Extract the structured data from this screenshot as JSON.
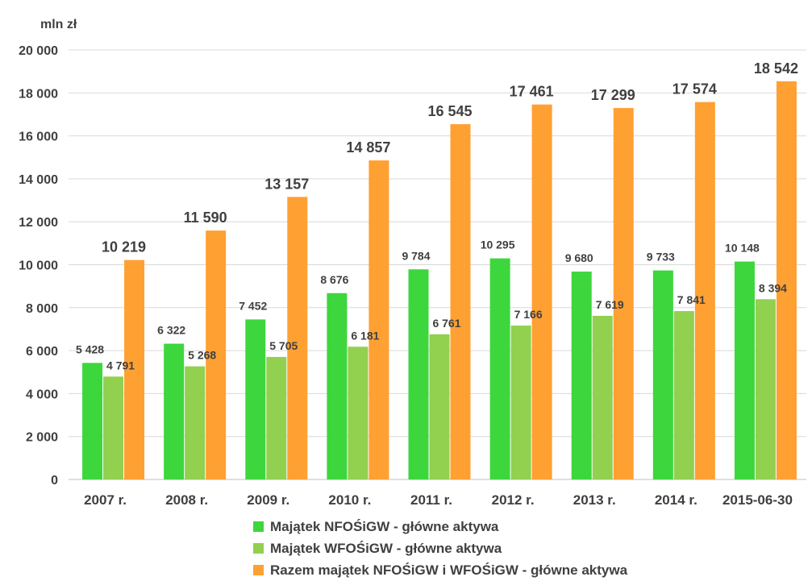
{
  "chart_data": {
    "type": "bar",
    "unit_label": "mln zł",
    "categories": [
      "2007 r.",
      "2008 r.",
      "2009 r.",
      "2010 r.",
      "2011 r.",
      "2012 r.",
      "2013 r.",
      "2014 r.",
      "2015-06-30"
    ],
    "ylim": [
      0,
      20000
    ],
    "yticks": [
      0,
      2000,
      4000,
      6000,
      8000,
      10000,
      12000,
      14000,
      16000,
      18000,
      20000
    ],
    "ytick_labels": [
      "0",
      "2 000",
      "4 000",
      "6 000",
      "8 000",
      "10 000",
      "12 000",
      "14 000",
      "16 000",
      "18 000",
      "20 000"
    ],
    "grid": true,
    "legend_position": "bottom",
    "series": [
      {
        "name": "Majątek NFOŚiGW - główne aktywa",
        "color": "#3dd63d",
        "values": [
          5428,
          6322,
          7452,
          8676,
          9784,
          10295,
          9680,
          9733,
          10148
        ],
        "labels": [
          "5 428",
          "6 322",
          "7 452",
          "8 676",
          "9 784",
          "10 295",
          "9 680",
          "9 733",
          "10 148"
        ]
      },
      {
        "name": "Majątek WFOŚiGW - główne aktywa",
        "color": "#92d050",
        "values": [
          4791,
          5268,
          5705,
          6181,
          6761,
          7166,
          7619,
          7841,
          8394
        ],
        "labels": [
          "4 791",
          "5 268",
          "5 705",
          "6 181",
          "6 761",
          "7 166",
          "7 619",
          "7 841",
          "8 394"
        ]
      },
      {
        "name": "Razem majątek NFOŚiGW i WFOŚiGW - główne aktywa",
        "color": "#ffa033",
        "values": [
          10219,
          11590,
          13157,
          14857,
          16545,
          17461,
          17299,
          17574,
          18542
        ],
        "labels": [
          "10 219",
          "11 590",
          "13 157",
          "14 857",
          "16 545",
          "17 461",
          "17 299",
          "17 574",
          "18 542"
        ]
      }
    ]
  }
}
